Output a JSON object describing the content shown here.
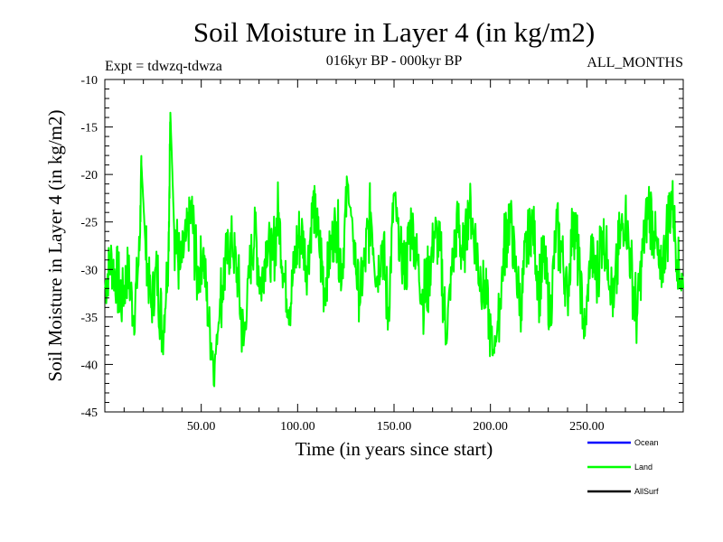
{
  "chart_data": {
    "type": "line",
    "title": "Soil Moisture in Layer 4 (in kg/m2)",
    "subtitle_left": "Expt = tdwzq-tdwza",
    "subtitle_center": "016kyr BP - 000kyr BP",
    "subtitle_right": "ALL_MONTHS",
    "xlabel": "Time (in years since start)",
    "ylabel": "Soil Moisture in Layer 4 (in kg/m2)",
    "xlim": [
      0,
      300
    ],
    "ylim": [
      -45,
      -10
    ],
    "x_ticks": [
      50,
      100,
      150,
      200,
      250
    ],
    "x_tick_labels": [
      "50.00",
      "100.00",
      "150.00",
      "200.00",
      "250.00"
    ],
    "y_ticks": [
      -10,
      -15,
      -20,
      -25,
      -30,
      -35,
      -40,
      -45
    ],
    "y_tick_labels": [
      "-10",
      "-15",
      "-20",
      "-25",
      "-30",
      "-35",
      "-40",
      "-45"
    ],
    "grid": false,
    "legend_placement": "bottom-right",
    "series": [
      {
        "name": "Ocean",
        "color": "#0000ff",
        "x": [],
        "y": []
      },
      {
        "name": "Land",
        "color": "#00ff00",
        "x": [
          0,
          3,
          6,
          9,
          12,
          15,
          18,
          19,
          21,
          24,
          27,
          30,
          33,
          34,
          36,
          39,
          42,
          45,
          48,
          51,
          54,
          57,
          60,
          63,
          66,
          69,
          72,
          75,
          78,
          81,
          84,
          87,
          90,
          93,
          96,
          99,
          102,
          105,
          108,
          111,
          114,
          117,
          120,
          123,
          126,
          129,
          132,
          135,
          138,
          141,
          144,
          147,
          150,
          153,
          156,
          159,
          162,
          165,
          168,
          171,
          174,
          177,
          180,
          183,
          186,
          189,
          192,
          195,
          198,
          201,
          204,
          207,
          210,
          213,
          216,
          219,
          222,
          225,
          228,
          231,
          234,
          237,
          240,
          243,
          246,
          249,
          252,
          255,
          258,
          261,
          264,
          267,
          270,
          273,
          276,
          279,
          282,
          285,
          288,
          291,
          294,
          297,
          300
        ],
        "y": [
          -32,
          -29,
          -31,
          -33,
          -30,
          -35,
          -28,
          -19,
          -27,
          -34,
          -30,
          -37,
          -28,
          -13.5,
          -26,
          -30,
          -27,
          -24,
          -31,
          -28,
          -36,
          -40,
          -33,
          -29,
          -27,
          -31,
          -38,
          -30,
          -26,
          -32,
          -27,
          -29,
          -24,
          -31,
          -34,
          -28,
          -26,
          -30,
          -23,
          -27,
          -32,
          -28,
          -25,
          -30,
          -21,
          -27,
          -33,
          -29,
          -24,
          -31,
          -27,
          -35,
          -22,
          -28,
          -30,
          -25,
          -29,
          -33,
          -31,
          -26,
          -28,
          -37,
          -30,
          -25,
          -29,
          -23,
          -27,
          -31,
          -33,
          -39,
          -36,
          -28,
          -24,
          -30,
          -34,
          -27,
          -25,
          -32,
          -29,
          -35,
          -26,
          -28,
          -33,
          -24,
          -30,
          -37,
          -28,
          -31,
          -26,
          -29,
          -34,
          -27,
          -24,
          -30,
          -35,
          -28,
          -23,
          -26,
          -31,
          -27,
          -22,
          -29,
          -32
        ],
        "amp": [
          3,
          3,
          4,
          3,
          3,
          3,
          2,
          0,
          3,
          3,
          4,
          3,
          3,
          0,
          4,
          3,
          3,
          4,
          3,
          3,
          3,
          1,
          4,
          3,
          3,
          4,
          2,
          3,
          4,
          3,
          3,
          4,
          3,
          3,
          3,
          4,
          3,
          3,
          3,
          4,
          3,
          3,
          4,
          3,
          1,
          3,
          3,
          4,
          3,
          3,
          4,
          3,
          2,
          3,
          4,
          3,
          3,
          4,
          3,
          3,
          4,
          2,
          3,
          4,
          3,
          3,
          4,
          3,
          3,
          1,
          3,
          4,
          3,
          3,
          4,
          3,
          3,
          4,
          3,
          3,
          4,
          3,
          3,
          4,
          3,
          2,
          3,
          4,
          3,
          3,
          4,
          3,
          3,
          4,
          3,
          3,
          4,
          3,
          3,
          4,
          3,
          3,
          3
        ]
      },
      {
        "name": "AllSurf",
        "color": "#000000",
        "x": [],
        "y": []
      }
    ]
  }
}
